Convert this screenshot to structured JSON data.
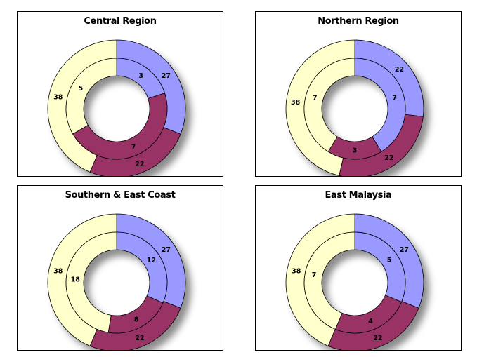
{
  "chart_data": [
    {
      "type": "donut",
      "title": "Central Region",
      "outer_ring": [
        27,
        22,
        38
      ],
      "inner_ring": [
        3,
        7,
        5
      ]
    },
    {
      "type": "donut",
      "title": "Northern Region",
      "outer_ring": [
        22,
        22,
        38
      ],
      "inner_ring": [
        7,
        3,
        7
      ]
    },
    {
      "type": "donut",
      "title": "Southern & East Coast",
      "outer_ring": [
        27,
        22,
        38
      ],
      "inner_ring": [
        12,
        8,
        18
      ]
    },
    {
      "type": "donut",
      "title": "East  Malaysia",
      "outer_ring": [
        27,
        22,
        38
      ],
      "inner_ring": [
        5,
        4,
        7
      ]
    }
  ],
  "colors": [
    "#9999ff",
    "#993366",
    "#ffffcc"
  ]
}
